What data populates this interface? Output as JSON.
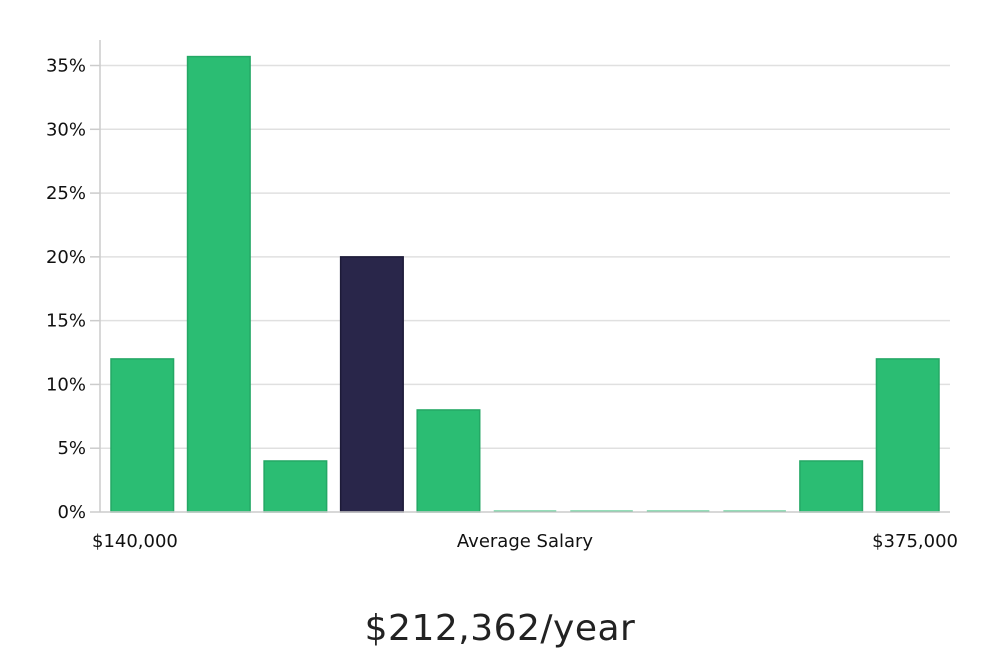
{
  "chart_data": {
    "type": "bar",
    "title": "",
    "xlabel": "Average Salary",
    "ylabel": "",
    "x_start_label": "$140,000",
    "x_end_label": "$375,000",
    "ylim": [
      0,
      37
    ],
    "yticks": [
      0,
      5,
      10,
      15,
      20,
      25,
      30,
      35
    ],
    "ytick_labels": [
      "0%",
      "5%",
      "10%",
      "15%",
      "20%",
      "25%",
      "30%",
      "35%"
    ],
    "grid": true,
    "bins": 11,
    "values": [
      12,
      35.7,
      4,
      20,
      8,
      0,
      0,
      0,
      0,
      4,
      12
    ],
    "highlight_index": 3,
    "colors": {
      "bar": "#2bbd73",
      "highlight": "#29264a",
      "grid": "#e0e0e0",
      "axis": "#cccccc"
    }
  },
  "salary": {
    "display": "$212,362/year"
  }
}
